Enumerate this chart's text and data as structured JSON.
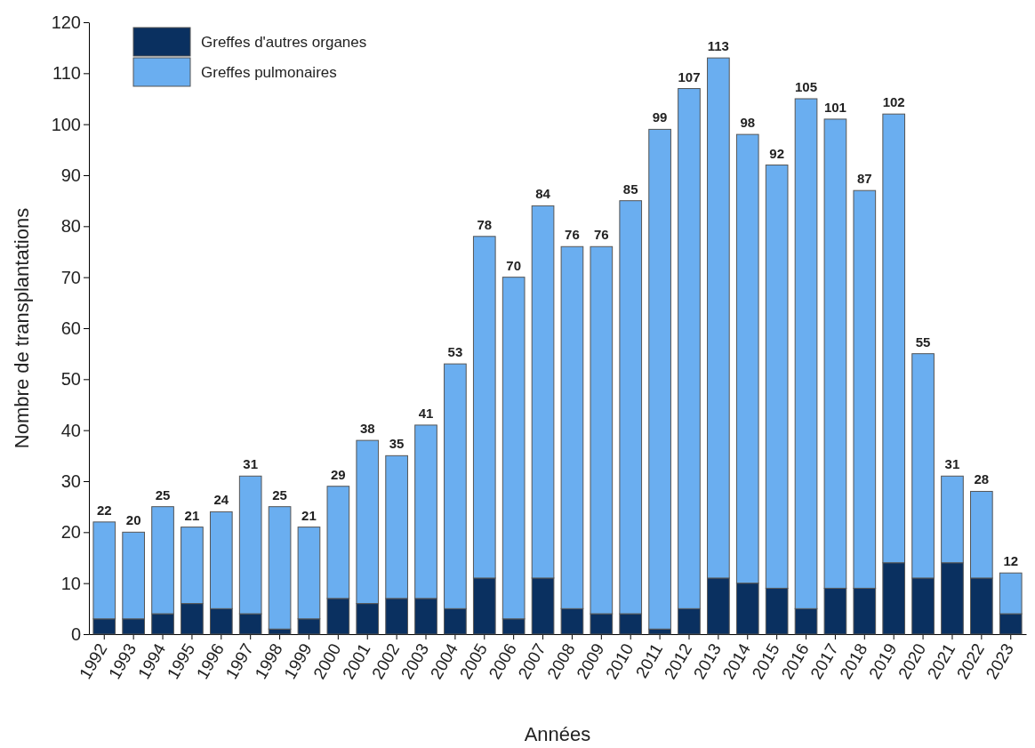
{
  "chart_data": {
    "type": "bar",
    "stacked": true,
    "xlabel": "Années",
    "ylabel": "Nombre de transplantations",
    "categories": [
      "1992",
      "1993",
      "1994",
      "1995",
      "1996",
      "1997",
      "1998",
      "1999",
      "2000",
      "2001",
      "2002",
      "2003",
      "2004",
      "2005",
      "2006",
      "2007",
      "2008",
      "2009",
      "2010",
      "2011",
      "2012",
      "2013",
      "2014",
      "2015",
      "2016",
      "2017",
      "2018",
      "2019",
      "2020",
      "2021",
      "2022",
      "2023"
    ],
    "series": [
      {
        "name": "Greffes d'autres organes",
        "color": "#0a3060",
        "values": [
          3,
          3,
          4,
          6,
          5,
          4,
          1,
          3,
          7,
          6,
          7,
          7,
          5,
          11,
          3,
          11,
          5,
          4,
          4,
          1,
          5,
          11,
          10,
          9,
          5,
          9,
          9,
          14,
          11,
          14,
          11,
          4
        ]
      },
      {
        "name": "Greffes pulmonaires",
        "color": "#6aaef0",
        "values": [
          19,
          17,
          21,
          15,
          19,
          27,
          24,
          18,
          22,
          32,
          28,
          34,
          48,
          67,
          67,
          73,
          71,
          72,
          81,
          98,
          102,
          102,
          88,
          83,
          100,
          92,
          78,
          88,
          44,
          17,
          17,
          8
        ]
      }
    ],
    "totals": [
      "22",
      "20",
      "25",
      "21",
      "24",
      "31",
      "25",
      "21",
      "29",
      "38",
      "35",
      "41",
      "53",
      "78",
      "70",
      "84",
      "76",
      "76",
      "85",
      "99",
      "107",
      "113",
      "98",
      "92",
      "105",
      "101",
      "87",
      "102",
      "55",
      "31",
      "28",
      "12"
    ],
    "ylim": [
      0,
      120
    ],
    "yticks": [
      0,
      10,
      20,
      30,
      40,
      50,
      60,
      70,
      80,
      90,
      100,
      110,
      120
    ],
    "grid": false,
    "legend": "top left"
  }
}
